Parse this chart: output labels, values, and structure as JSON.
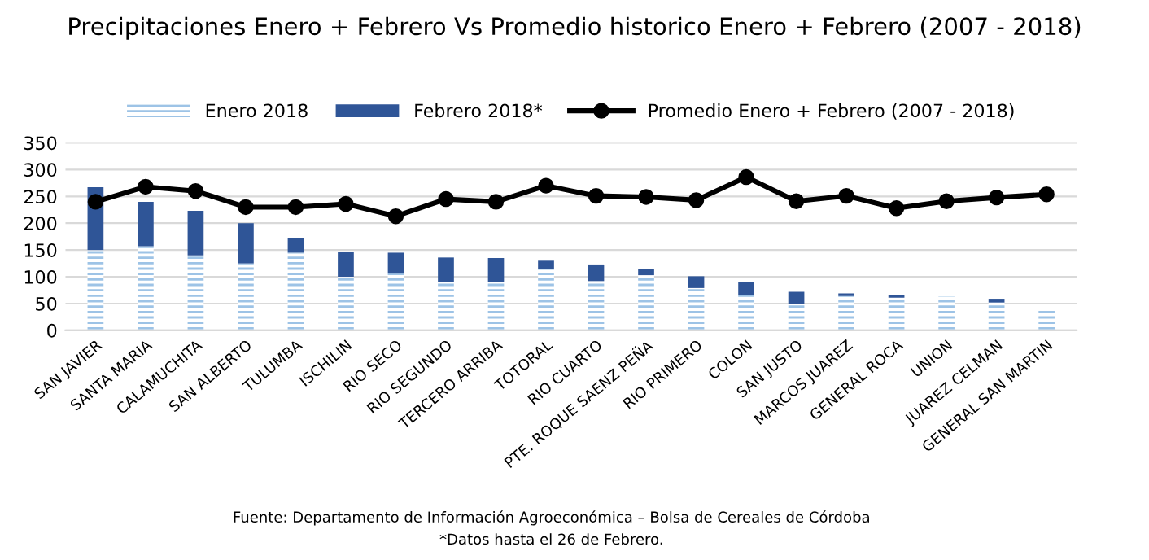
{
  "chart_data": {
    "type": "bar",
    "stacked": true,
    "title": "Precipitaciones Enero + Febrero Vs Promedio historico Enero + Febrero (2007 - 2018)",
    "categories": [
      "SAN JAVIER",
      "SANTA MARIA",
      "CALAMUCHITA",
      "SAN ALBERTO",
      "TULUMBA",
      "ISCHILIN",
      "RIO SECO",
      "RIO SEGUNDO",
      "TERCERO ARRIBA",
      "TOTORAL",
      "RIO CUARTO",
      "PTE. ROQUE SAENZ PEÑA",
      "RIO PRIMERO",
      "COLON",
      "SAN JUSTO",
      "MARCOS JUAREZ",
      "GENERAL ROCA",
      "UNION",
      "JUAREZ CELMAN",
      "GENERAL SAN MARTIN"
    ],
    "series": [
      {
        "name": "Enero 2018",
        "color": "#9dc3e6",
        "values": [
          150,
          157,
          140,
          125,
          145,
          100,
          106,
          90,
          90,
          115,
          92,
          103,
          79,
          66,
          50,
          64,
          61,
          63,
          52,
          40
        ]
      },
      {
        "name": "Febrero 2018*",
        "color": "#2f5597",
        "values": [
          117,
          83,
          83,
          75,
          27,
          46,
          39,
          46,
          45,
          15,
          31,
          11,
          22,
          24,
          22,
          5,
          5,
          0,
          7,
          0
        ]
      },
      {
        "name": "Promedio Enero + Febrero (2007 - 2018)",
        "type": "line",
        "color": "#000000",
        "marker": "circle",
        "values": [
          240,
          268,
          260,
          230,
          230,
          236,
          213,
          245,
          240,
          270,
          251,
          249,
          243,
          286,
          241,
          251,
          228,
          241,
          248,
          254
        ]
      }
    ],
    "ylim": [
      0,
      350
    ],
    "yticks": [
      0,
      50,
      100,
      150,
      200,
      250,
      300,
      350
    ],
    "grid": "y",
    "legend": "top",
    "annotations": [
      "Fuente: Departamento de Información Agroeconómica – Bolsa de Cereales de Córdoba",
      "*Datos hasta el 26 de Febrero."
    ]
  }
}
